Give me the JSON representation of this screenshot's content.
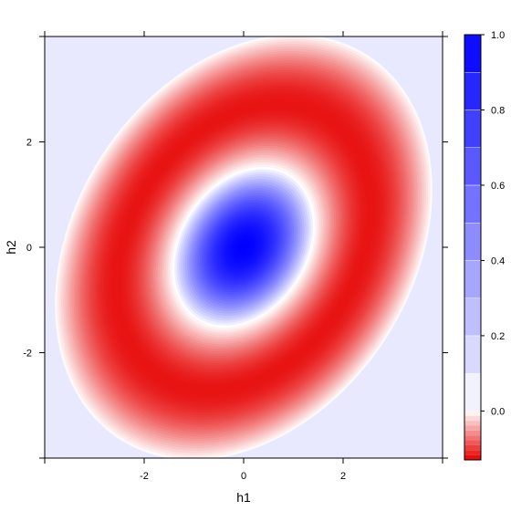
{
  "chart_data": {
    "type": "heatmap",
    "title": "",
    "xlabel": "h1",
    "ylabel": "h2",
    "xlim": [
      -4,
      4
    ],
    "ylim": [
      -4,
      4
    ],
    "x_ticks": [
      -2,
      0,
      2
    ],
    "y_ticks": [
      -2,
      0,
      2
    ],
    "x_tick_labels": [
      "-2",
      "0",
      "2"
    ],
    "y_tick_labels": [
      "-2",
      "0",
      "2"
    ],
    "surface": {
      "peak": {
        "x": 0,
        "y": 0,
        "value": 1.0
      },
      "zero_contour": {
        "center_x": 0,
        "center_y": 0,
        "semi_major": 1.72,
        "semi_minor": 1.2,
        "tilt_degrees": 57
      },
      "minimum_ring": {
        "semi_major": 3.1,
        "semi_minor": 2.2,
        "value": -0.12
      },
      "outer_extent": {
        "semi_major": 4.6,
        "semi_minor": 3.4
      },
      "background_value": 0.0
    },
    "colorkey": {
      "min": -0.13,
      "max": 1.0,
      "ticks": [
        0.0,
        0.2,
        0.4,
        0.6,
        0.8,
        1.0
      ],
      "tick_labels": [
        "0.0",
        "0.2",
        "0.4",
        "0.6",
        "0.8",
        "1.0"
      ],
      "positive_levels": [
        0.0,
        0.1,
        0.2,
        0.3,
        0.4,
        0.5,
        0.6,
        0.7,
        0.8,
        0.9,
        1.0
      ],
      "negative_levels": 10,
      "low_color": "#e60000",
      "zero_color": "#ffffff",
      "high_color": "#0000ff",
      "background_color": "#e8e8ff"
    },
    "legend": "right",
    "grid": false
  }
}
